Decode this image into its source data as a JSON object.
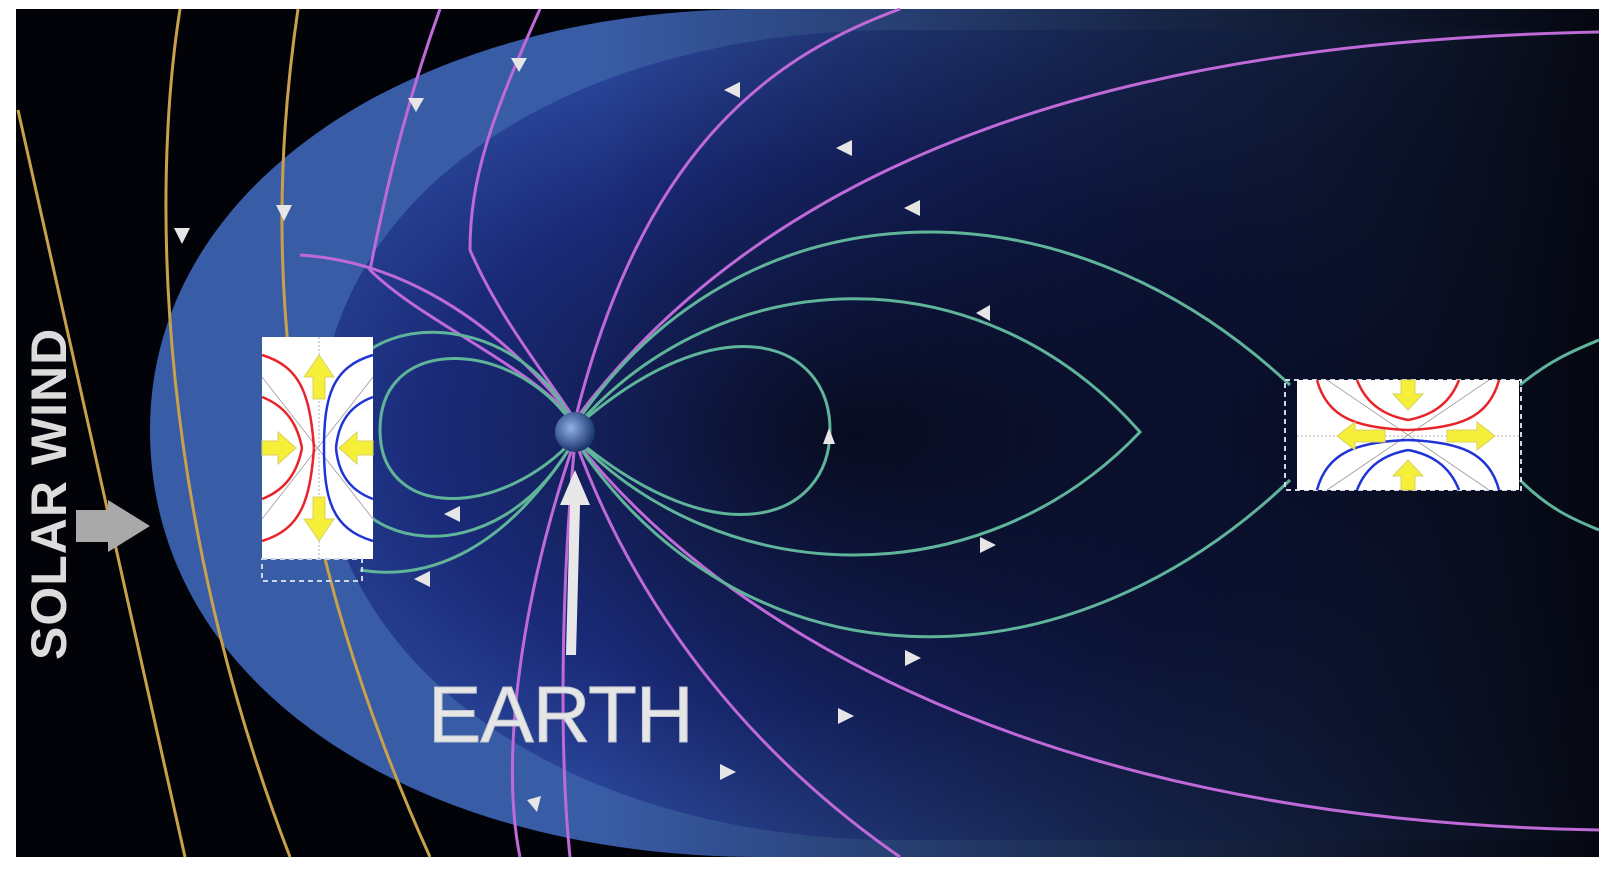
{
  "labels": {
    "solar_wind": "SOLAR WIND",
    "earth": "EARTH"
  },
  "colors": {
    "space": "#020309",
    "magnetosheath": "#3f66b8",
    "magnetosphere": "#2a3f93",
    "solar_wind_field_lines": "#c9a14a",
    "interplanetary_field_lines": "#bf6ad8",
    "closed_field_lines": "#5fb49a",
    "reconnection_inflow": "#e8232a",
    "reconnection_outflow": "#1f33d6",
    "outflow_arrows": "#f5ef3a"
  },
  "insets": [
    {
      "name": "dayside-reconnection-inset",
      "orientation": "vertical"
    },
    {
      "name": "nightside-reconnection-inset",
      "orientation": "horizontal"
    }
  ]
}
